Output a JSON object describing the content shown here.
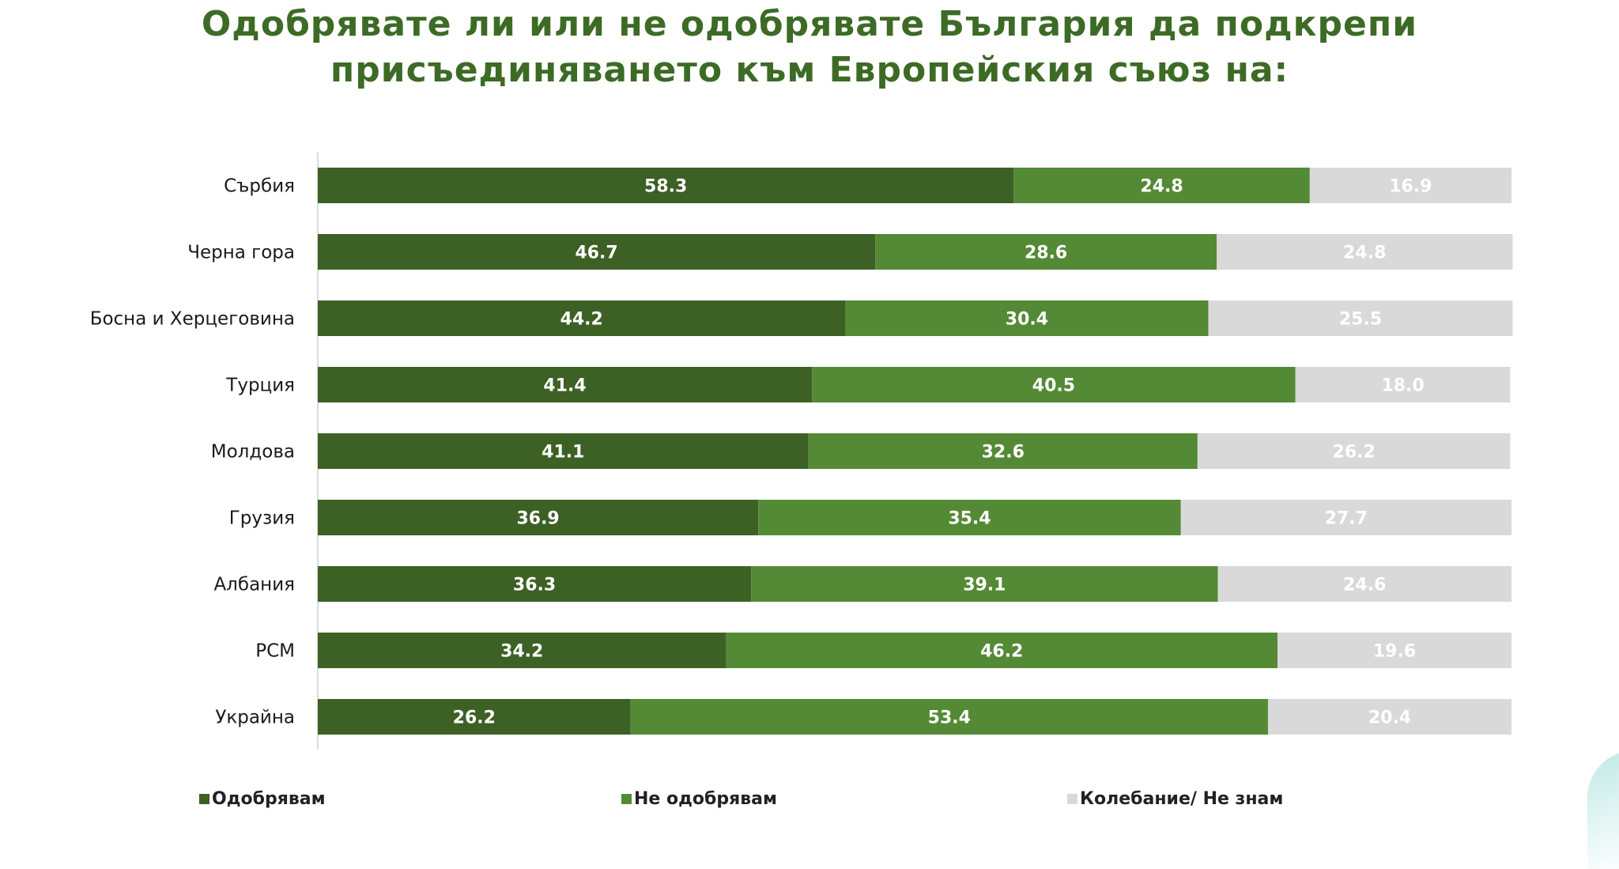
{
  "chart_data": {
    "type": "bar",
    "orientation": "horizontal",
    "stacked": true,
    "title": "Одобрявате ли или не одобрявате България да подкрепи присъединяването към Европейския съюз на:",
    "categories": [
      "Сърбия",
      "Черна гора",
      "Босна и Херцеговина",
      "Турция",
      "Молдова",
      "Грузия",
      "Албания",
      "РСМ",
      "Украйна"
    ],
    "series": [
      {
        "name": "Одобрявам",
        "color": "#3d6024",
        "label_color": "#ffffff",
        "values": [
          58.3,
          46.7,
          44.2,
          41.4,
          41.1,
          36.9,
          36.3,
          34.2,
          26.2
        ]
      },
      {
        "name": "Не одобрявам",
        "color": "#548a35",
        "label_color": "#ffffff",
        "values": [
          24.8,
          28.6,
          30.4,
          40.5,
          32.6,
          35.4,
          39.1,
          46.2,
          53.4
        ]
      },
      {
        "name": "Колебание/ Не знам",
        "color": "#d9d9d9",
        "label_color": "#ffffff",
        "values": [
          16.9,
          24.8,
          25.5,
          18.0,
          26.2,
          27.7,
          24.6,
          19.6,
          20.4
        ]
      }
    ],
    "xlim": [
      0,
      100
    ],
    "legend_position": "bottom",
    "grid": false
  }
}
